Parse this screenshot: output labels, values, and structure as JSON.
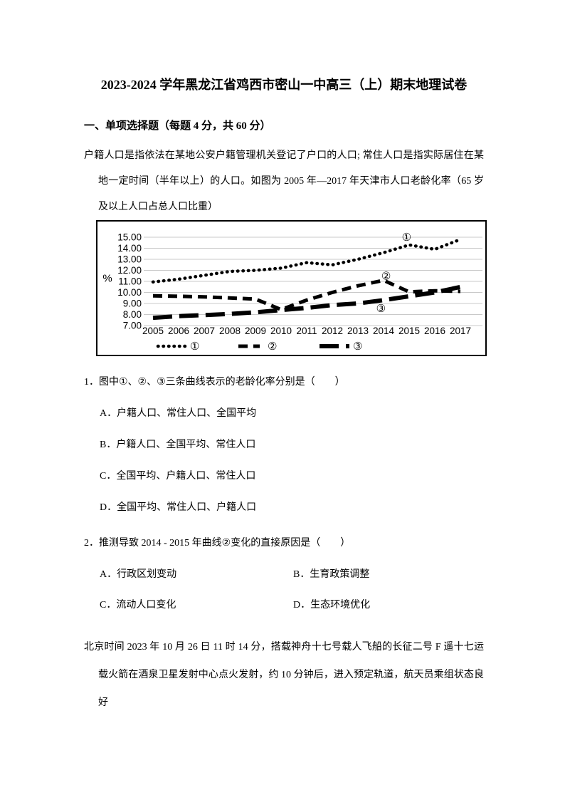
{
  "document": {
    "title": "2023-2024 学年黑龙江省鸡西市密山一中高三（上）期末地理试卷",
    "section_heading": "一、单项选择题（每题 4 分，共 60 分）",
    "intro_paragraph": "户籍人口是指依法在某地公安户籍管理机关登记了户口的人口; 常住人口是指实际居住在某地一定时间（半年以上）的人口。如图为 2005 年—2017 年天津市人口老龄化率（65 岁及以上人口占总人口比重）",
    "closing_paragraph": "北京时间 2023 年 10 月 26 日 11 时 14 分，搭载神舟十七号载人飞船的长征二号 F 遥十七运载火箭在酒泉卫星发射中心点火发射，约 10 分钟后，进入预定轨道，航天员乘组状态良好"
  },
  "questions": {
    "q1": {
      "number": "1．",
      "stem": "图中①、②、③三条曲线表示的老龄化率分别是（　　）",
      "options": [
        {
          "label": "A．",
          "text": "户籍人口、常住人口、全国平均"
        },
        {
          "label": "B．",
          "text": "户籍人口、全国平均、常住人口"
        },
        {
          "label": "C．",
          "text": "全国平均、户籍人口、常住人口"
        },
        {
          "label": "D．",
          "text": "全国平均、常住人口、户籍人口"
        }
      ]
    },
    "q2": {
      "number": "2．",
      "stem": "推测导致 2014 - 2015 年曲线②变化的直接原因是（　　）",
      "options": [
        {
          "label": "A．",
          "text": "行政区划变动"
        },
        {
          "label": "B．",
          "text": "生育政策调整"
        },
        {
          "label": "C．",
          "text": "流动人口变化"
        },
        {
          "label": "D．",
          "text": "生态环境优化"
        }
      ]
    }
  },
  "chart_data": {
    "type": "line",
    "title": "",
    "ylabel": "%",
    "xlabel": "",
    "ylim": [
      7,
      15
    ],
    "yticks": [
      15,
      14,
      13,
      12,
      11,
      10,
      9,
      8,
      7
    ],
    "categories": [
      "2005",
      "2006",
      "2007",
      "2008",
      "2009",
      "2010",
      "2011",
      "2012",
      "2013",
      "2014",
      "2015",
      "2016",
      "2017"
    ],
    "grid": true,
    "legend_position": "bottom",
    "series": [
      {
        "name": "①",
        "style": "dotted",
        "values": [
          10.95,
          11.2,
          11.55,
          11.9,
          12.0,
          12.2,
          12.7,
          12.5,
          13.0,
          13.6,
          14.3,
          13.9,
          14.8
        ]
      },
      {
        "name": "②",
        "style": "short-dash",
        "values": [
          9.7,
          9.65,
          9.6,
          9.5,
          9.4,
          8.45,
          9.3,
          10.0,
          10.6,
          11.1,
          10.05,
          10.15,
          10.1
        ]
      },
      {
        "name": "③",
        "style": "long-dash",
        "values": [
          7.7,
          7.85,
          7.95,
          8.05,
          8.2,
          8.4,
          8.6,
          8.85,
          9.0,
          9.3,
          9.65,
          10.0,
          10.5
        ]
      }
    ],
    "annotations": [
      {
        "label": "①",
        "x": 2014.9,
        "y": 15.0
      },
      {
        "label": "②",
        "x": 2014.1,
        "y": 11.5
      },
      {
        "label": "③",
        "x": 2013.9,
        "y": 8.55
      }
    ]
  },
  "colors": {
    "text": "#000000",
    "line": "#000000",
    "gridline": "#c9c9c9",
    "chart_border": "#000000",
    "background": "#ffffff"
  }
}
